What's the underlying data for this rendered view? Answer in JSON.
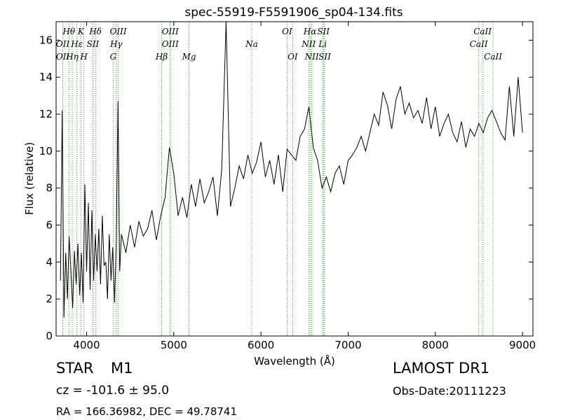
{
  "chart_data": {
    "type": "line",
    "title": "spec-55919-F5591906_sp04-134.fits",
    "xlabel": "Wavelength (Å)",
    "ylabel": "Flux (relative)",
    "xlim": [
      3650,
      9120
    ],
    "ylim": [
      0,
      17
    ],
    "xticks": [
      4000,
      5000,
      6000,
      7000,
      8000,
      9000
    ],
    "yticks": [
      0,
      2,
      4,
      6,
      8,
      10,
      12,
      14,
      16
    ],
    "grid": false,
    "line_color": "#000000",
    "marker_line_color": "#2ca02c",
    "series": [
      {
        "values_description_free": true,
        "x": [
          3700,
          3720,
          3740,
          3760,
          3780,
          3800,
          3820,
          3840,
          3860,
          3880,
          3900,
          3920,
          3940,
          3960,
          3980,
          4000,
          4020,
          4040,
          4060,
          4080,
          4100,
          4120,
          4140,
          4160,
          4180,
          4200,
          4220,
          4240,
          4260,
          4280,
          4300,
          4320,
          4340,
          4360,
          4380,
          4400,
          4450,
          4500,
          4550,
          4600,
          4650,
          4700,
          4750,
          4800,
          4850,
          4900,
          4950,
          5000,
          5050,
          5100,
          5150,
          5200,
          5250,
          5300,
          5350,
          5400,
          5450,
          5500,
          5550,
          5600,
          5650,
          5700,
          5750,
          5800,
          5850,
          5900,
          5950,
          6000,
          6050,
          6100,
          6150,
          6200,
          6250,
          6300,
          6350,
          6400,
          6450,
          6500,
          6550,
          6600,
          6650,
          6700,
          6750,
          6800,
          6850,
          6900,
          6950,
          7000,
          7050,
          7100,
          7150,
          7200,
          7250,
          7300,
          7350,
          7400,
          7450,
          7500,
          7550,
          7600,
          7650,
          7700,
          7750,
          7800,
          7850,
          7900,
          7950,
          8000,
          8050,
          8100,
          8150,
          8200,
          8250,
          8300,
          8350,
          8400,
          8450,
          8500,
          8550,
          8600,
          8650,
          8700,
          8750,
          8800,
          8850,
          8900,
          8950,
          9000
        ],
        "y": [
          3.0,
          12.2,
          1.0,
          4.5,
          2.0,
          5.4,
          3.5,
          1.5,
          4.6,
          2.8,
          5.0,
          2.2,
          4.5,
          1.8,
          8.2,
          3.5,
          7.2,
          2.5,
          6.8,
          3.0,
          5.5,
          3.5,
          5.8,
          2.8,
          6.5,
          3.8,
          4.0,
          2.0,
          5.5,
          3.0,
          4.8,
          1.8,
          5.0,
          12.7,
          3.5,
          5.5,
          4.5,
          6.0,
          4.8,
          6.2,
          5.4,
          5.8,
          6.8,
          5.2,
          6.5,
          7.5,
          10.2,
          8.8,
          6.5,
          7.5,
          6.4,
          8.2,
          7.0,
          8.5,
          7.2,
          7.8,
          8.6,
          6.5,
          9.0,
          17.0,
          7.0,
          8.0,
          9.2,
          8.5,
          9.8,
          8.8,
          9.4,
          10.5,
          8.6,
          9.5,
          8.2,
          9.8,
          7.8,
          10.1,
          9.8,
          9.5,
          10.8,
          11.2,
          12.4,
          10.2,
          9.5,
          8.0,
          8.6,
          7.8,
          8.8,
          9.2,
          8.2,
          9.5,
          9.8,
          10.2,
          10.8,
          10.0,
          11.0,
          12.0,
          11.4,
          13.2,
          12.5,
          11.2,
          12.8,
          13.5,
          12.0,
          12.6,
          11.8,
          12.2,
          11.5,
          12.9,
          11.2,
          12.4,
          10.8,
          11.5,
          12.0,
          11.0,
          10.5,
          11.6,
          10.2,
          11.2,
          10.8,
          11.5,
          11.0,
          11.8,
          12.2,
          11.6,
          11.0,
          10.6,
          13.5,
          10.8,
          14.0,
          11.0
        ]
      }
    ],
    "line_labels": [
      {
        "name": "Hθ",
        "x": 3797,
        "row": 1
      },
      {
        "name": "OII",
        "x": 3727,
        "row": 2
      },
      {
        "name": "OII",
        "x": 3727,
        "row": 4
      },
      {
        "name": "Hη",
        "x": 3835,
        "row": 3
      },
      {
        "name": "K",
        "x": 3934,
        "row": 1
      },
      {
        "name": "Hε",
        "x": 3889,
        "row": 2
      },
      {
        "name": "SII",
        "x": 4072,
        "row": 2
      },
      {
        "name": "H",
        "x": 3969,
        "row": 3
      },
      {
        "name": "Hδ",
        "x": 4102,
        "row": 1
      },
      {
        "name": "OIII",
        "x": 4363,
        "row": 1
      },
      {
        "name": "Hγ",
        "x": 4340,
        "row": 2
      },
      {
        "name": "G",
        "x": 4305,
        "row": 3
      },
      {
        "name": "OIII",
        "x": 4959,
        "row": 1
      },
      {
        "name": "OIII",
        "x": 4959,
        "row": 2
      },
      {
        "name": "Hβ",
        "x": 4861,
        "row": 3
      },
      {
        "name": "Mg",
        "x": 5175,
        "row": 3
      },
      {
        "name": "Na",
        "x": 5894,
        "row": 2
      },
      {
        "name": "OI",
        "x": 6300,
        "row": 1
      },
      {
        "name": "OI",
        "x": 6364,
        "row": 3
      },
      {
        "name": "Hα",
        "x": 6563,
        "row": 1
      },
      {
        "name": "SII",
        "x": 6716,
        "row": 1
      },
      {
        "name": "NII",
        "x": 6548,
        "row": 2
      },
      {
        "name": "Li",
        "x": 6708,
        "row": 2
      },
      {
        "name": "NII",
        "x": 6583,
        "row": 3
      },
      {
        "name": "SII",
        "x": 6731,
        "row": 3
      },
      {
        "name": "CaII",
        "x": 8542,
        "row": 1
      },
      {
        "name": "CaII",
        "x": 8498,
        "row": 2
      },
      {
        "name": "CaII",
        "x": 8662,
        "row": 3
      }
    ]
  },
  "info": {
    "object_class": "STAR",
    "object_subclass": "M1",
    "survey": "LAMOST DR1",
    "cz_text": "cz = -101.6 ± 95.0",
    "obs_date_text": "Obs-Date:20111223",
    "radec_text": "RA = 166.36982, DEC = 49.78741"
  }
}
